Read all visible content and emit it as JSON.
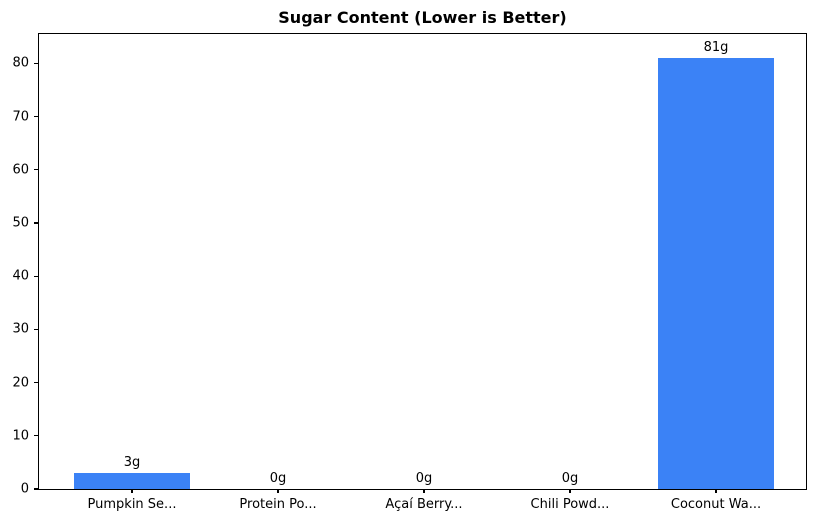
{
  "title": "Sugar Content (Lower is Better)",
  "chart_data": {
    "type": "bar",
    "title": "Sugar Content (Lower is Better)",
    "categories": [
      "Pumpkin Se...",
      "Protein Po...",
      "Açaí Berry...",
      "Chili Powd...",
      "Coconut Wa..."
    ],
    "values": [
      3,
      0,
      0,
      0,
      81
    ],
    "value_labels": [
      "3g",
      "0g",
      "0g",
      "0g",
      "81g"
    ],
    "xlabel": "",
    "ylabel": "",
    "ylim": [
      0,
      85.5
    ],
    "yticks": [
      0,
      10,
      20,
      30,
      40,
      50,
      60,
      70,
      80
    ],
    "bar_color": "#3b82f6",
    "axis_color": "#000000",
    "background_color": "#ffffff",
    "grid": false,
    "legend": "none"
  }
}
